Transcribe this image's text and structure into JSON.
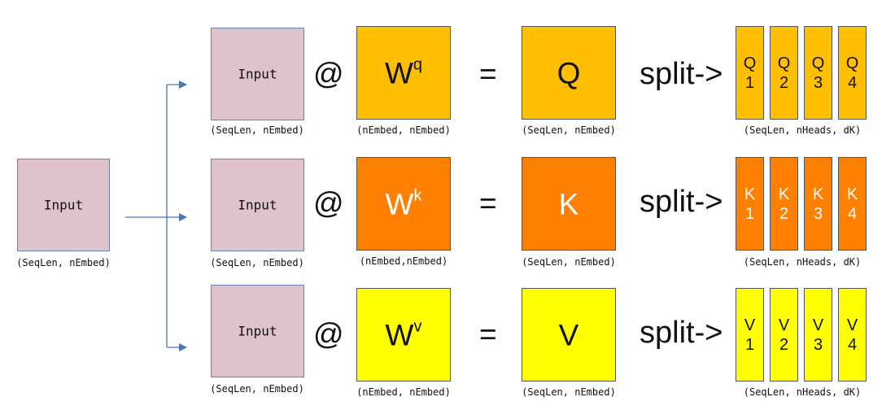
{
  "colors": {
    "input_fill": "#dec3cc",
    "input_border": "#6483b4",
    "arrow": "#4a74b3",
    "q_fill": "#ffbf00",
    "k_fill": "#ff8000",
    "v_fill": "#ffff00"
  },
  "source": {
    "label": "Input",
    "dims": "(SeqLen, nEmbed)"
  },
  "rows": [
    {
      "input_label": "Input",
      "input_dims": "(SeqLen, nEmbed)",
      "at_symbol": "@",
      "weight_base": "W",
      "weight_sup": "q",
      "weight_dims": "(nEmbed, nEmbed)",
      "equals_symbol": "=",
      "result_label": "Q",
      "result_dims": "(SeqLen, nEmbed)",
      "split_label": "split->",
      "heads": [
        {
          "letter": "Q",
          "index": "1"
        },
        {
          "letter": "Q",
          "index": "2"
        },
        {
          "letter": "Q",
          "index": "3"
        },
        {
          "letter": "Q",
          "index": "4"
        }
      ],
      "heads_dims": "(SeqLen, nHeads, dK)"
    },
    {
      "input_label": "Input",
      "input_dims": "(SeqLen, nEmbed)",
      "at_symbol": "@",
      "weight_base": "W",
      "weight_sup": "k",
      "weight_dims": "(nEmbed,nEmbed)",
      "equals_symbol": "=",
      "result_label": "K",
      "result_dims": "(SeqLen, nEmbed)",
      "split_label": "split->",
      "heads": [
        {
          "letter": "K",
          "index": "1"
        },
        {
          "letter": "K",
          "index": "2"
        },
        {
          "letter": "K",
          "index": "3"
        },
        {
          "letter": "K",
          "index": "4"
        }
      ],
      "heads_dims": "(SeqLen, nHeads, dK)"
    },
    {
      "input_label": "Input",
      "input_dims": "(SeqLen, nEmbed)",
      "at_symbol": "@",
      "weight_base": "W",
      "weight_sup": "v",
      "weight_dims": "(nEmbed, nEmbed)",
      "equals_symbol": "=",
      "result_label": "V",
      "result_dims": "(SeqLen, nEmbed)",
      "split_label": "split->",
      "heads": [
        {
          "letter": "V",
          "index": "1"
        },
        {
          "letter": "V",
          "index": "2"
        },
        {
          "letter": "V",
          "index": "3"
        },
        {
          "letter": "V",
          "index": "4"
        }
      ],
      "heads_dims": "(SeqLen, nHeads, dK)"
    }
  ]
}
